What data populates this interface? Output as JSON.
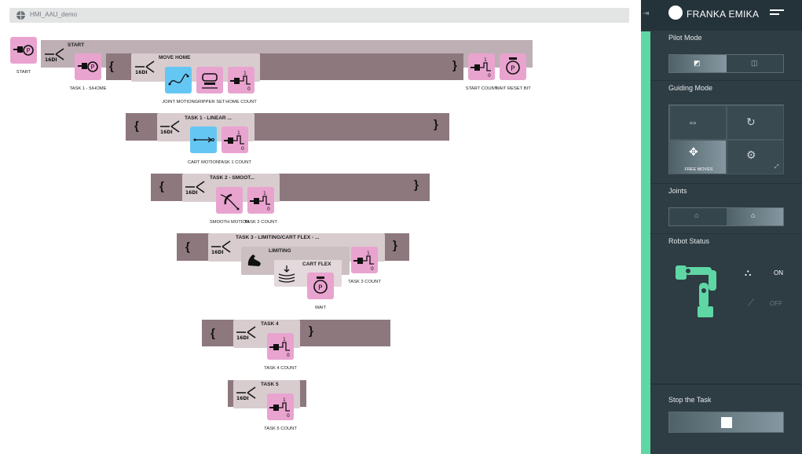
{
  "window": {
    "title": "HMI_AAU_demo"
  },
  "program": {
    "start": {
      "label": "START"
    },
    "main_group": {
      "label": "START",
      "mode": "16DI"
    },
    "move_home": {
      "label": "MOVE HOME",
      "mode": "16DI"
    },
    "task1_linear": {
      "label": "TASK 1 - LINEAR ...",
      "mode": "16DI"
    },
    "task2_smooth": {
      "label": "TASK 2 - SMOOT...",
      "mode": "16DI"
    },
    "task3": {
      "label": "TASK 3 - LIMITING/CART FLEX - ...",
      "mode": "16DI"
    },
    "limiting": {
      "label": "LIMITING"
    },
    "cart_flex": {
      "label": "CART FLEX"
    },
    "task4": {
      "label": "TASK 4",
      "mode": "16DI"
    },
    "task5": {
      "label": "TASK 5",
      "mode": "16DI"
    },
    "tiles": {
      "task1_home": "TASK 1 - 5/HOME",
      "joint_motion": "JOINT MOTION",
      "gripper_set": "GRIPPER SET",
      "home_count": "HOME COUNT",
      "start_count": "START COUNT",
      "wait_reset_bit": "WAIT RESET BIT",
      "cart_motion": "CART MOTION",
      "task1_count": "TASK 1 COUNT",
      "smooth_motion": "SMOOTH MOTION",
      "task2_count": "TASK 2 COUNT",
      "task3_count": "TASK 3 COUNT",
      "wait": "WAIT",
      "task4_count": "TASK 4 COUNT",
      "task5_count": "TASK 5 COUNT"
    },
    "count_digit_top": "1",
    "count_digit_bottom": "0"
  },
  "panel": {
    "brand": "FRANKA EMIKA",
    "pilot_mode": {
      "title": "Pilot Mode",
      "selected": 0
    },
    "guiding_mode": {
      "title": "Guiding Mode",
      "selected_label": "FREE MOVES"
    },
    "joints": {
      "title": "Joints",
      "selected": 1
    },
    "robot_status": {
      "title": "Robot Status",
      "on_label": "ON",
      "off_label": "OFF"
    },
    "stop": {
      "title": "Stop the Task"
    },
    "colors": {
      "accent": "#5fd7a5",
      "panel": "#2b3a40",
      "tile_pink": "#e9a3cf",
      "tile_blue": "#64c7f3",
      "bar": "#8d787e"
    }
  }
}
